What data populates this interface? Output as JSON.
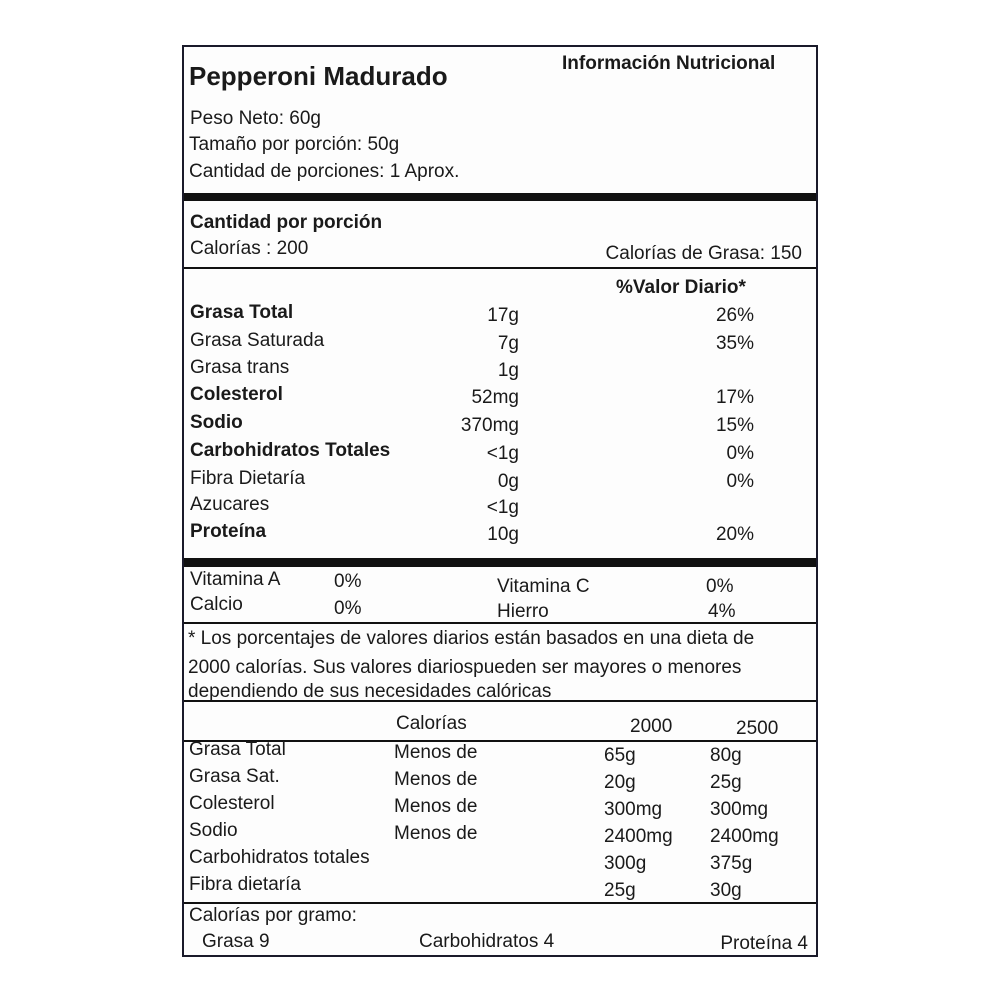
{
  "header": {
    "product_name": "Pepperoni Madurado",
    "section_title": "Información Nutricional",
    "net_weight": "Peso Neto: 60g",
    "serving_size": "Tamaño por porción:  50g",
    "servings": "Cantidad de porciones:  1 Aprox."
  },
  "per_serving": {
    "title": "Cantidad por porción",
    "calories": "Calorías : 200",
    "fat_calories": "Calorías de Grasa: 150"
  },
  "nutrients": {
    "dv_header": "%Valor Diario*",
    "rows": [
      {
        "name": "Grasa Total",
        "amount": "17g",
        "dv": "26%",
        "bold": true
      },
      {
        "name": "Grasa Saturada",
        "amount": "7g",
        "dv": "35%",
        "bold": false
      },
      {
        "name": "Grasa trans",
        "amount": "1g",
        "dv": "",
        "bold": false
      },
      {
        "name": "Colesterol",
        "amount": "52mg",
        "dv": "17%",
        "bold": true
      },
      {
        "name": "Sodio",
        "amount": "370mg",
        "dv": "15%",
        "bold": true
      },
      {
        "name": "Carbohidratos Totales",
        "amount": "<1g",
        "dv": "0%",
        "bold": true
      },
      {
        "name": "Fibra Dietaría",
        "amount": "0g",
        "dv": "0%",
        "bold": false
      },
      {
        "name": "Azucares",
        "amount": "<1g",
        "dv": "",
        "bold": false
      },
      {
        "name": "Proteína",
        "amount": "10g",
        "dv": "20%",
        "bold": true
      }
    ]
  },
  "vitamins": [
    {
      "name": "Vitamina A",
      "value": "0%"
    },
    {
      "name": "Vitamina C",
      "value": "0%"
    },
    {
      "name": "Calcio",
      "value": "0%"
    },
    {
      "name": "Hierro",
      "value": "4%"
    }
  ],
  "footnote": {
    "line1": "* Los porcentajes de valores diarios están basados en una dieta de",
    "line2": "2000 calorías. Sus valores diariospueden ser mayores o menores",
    "line3": "dependiendo de sus necesidades calóricas"
  },
  "reference_table": {
    "header": {
      "calories_label": "Calorías",
      "col1": "2000",
      "col2": "2500"
    },
    "rows": [
      {
        "name": "Grasa Total",
        "qualifier": "Menos de",
        "v2000": "65g",
        "v2500": "80g"
      },
      {
        "name": "Grasa Sat.",
        "qualifier": "Menos de",
        "v2000": "20g",
        "v2500": "25g"
      },
      {
        "name": "Colesterol",
        "qualifier": "Menos de",
        "v2000": "300mg",
        "v2500": "300mg"
      },
      {
        "name": "Sodio",
        "qualifier": "Menos de",
        "v2000": "2400mg",
        "v2500": "2400mg"
      },
      {
        "name": "Carbohidratos totales",
        "qualifier": "",
        "v2000": "300g",
        "v2500": "375g"
      },
      {
        "name": "Fibra dietaría",
        "qualifier": "",
        "v2000": "25g",
        "v2500": "30g"
      }
    ]
  },
  "calories_per_gram": {
    "title": "Calorías por gramo:",
    "fat": "Grasa 9",
    "carbs": "Carbohidratos 4",
    "protein": "Proteína  4"
  }
}
